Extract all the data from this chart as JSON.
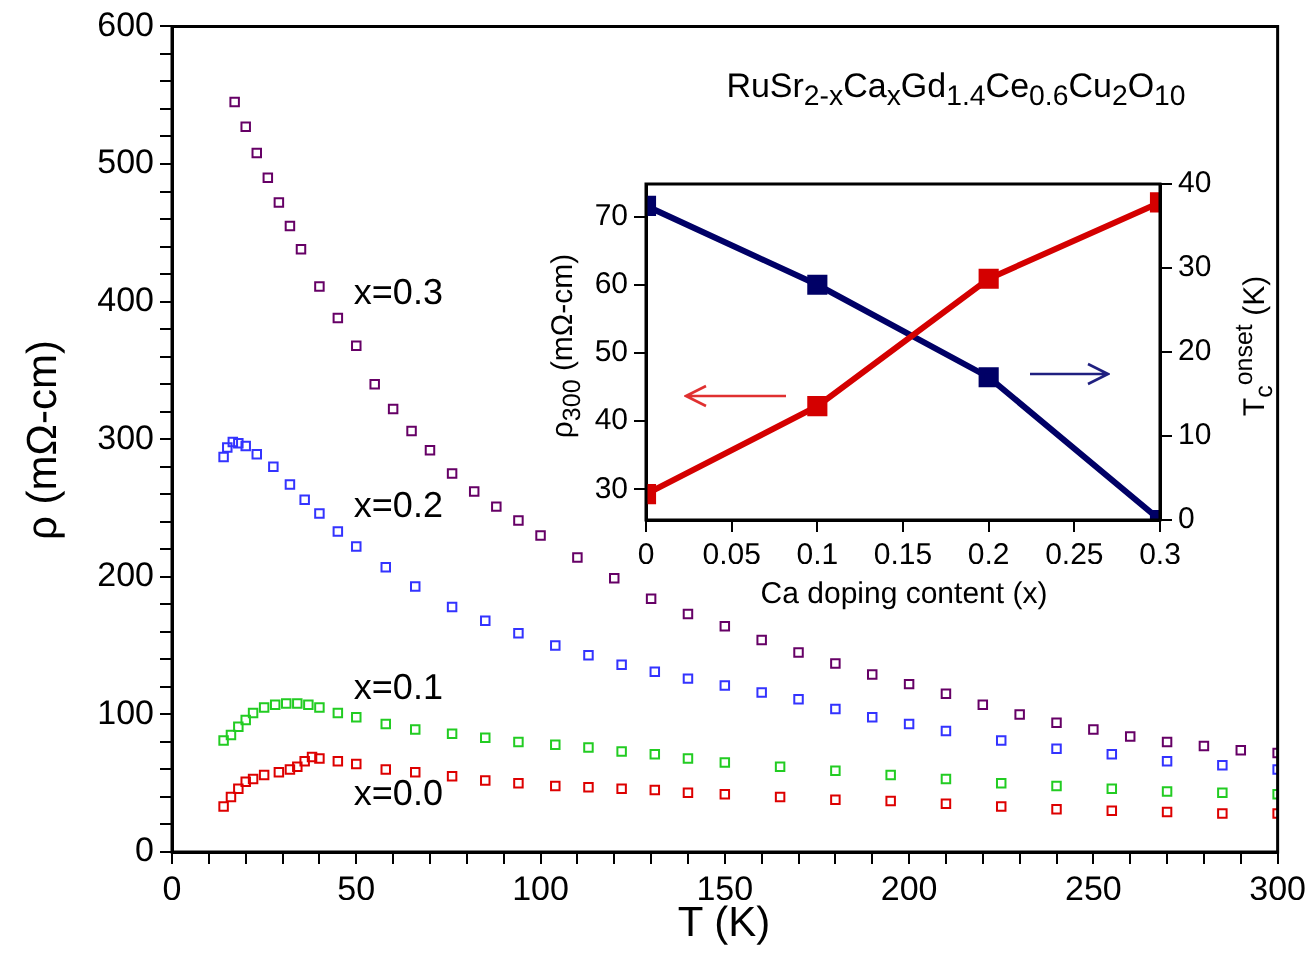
{
  "chart_data": [
    {
      "type": "scatter",
      "title": "RuSr$_{2-x}$Ca$_{x}$Gd$_{1.4}$Ce$_{0.6}$Cu$_{2}$O$_{10}$",
      "xlabel": "T (K)",
      "ylabel": "ρ (mΩ-cm)",
      "marker": "square",
      "legend": false,
      "grid": false,
      "xlim": [
        0,
        300
      ],
      "ylim": [
        0,
        600
      ],
      "xticks": [
        0,
        {
          "value": 10,
          "label": null
        },
        {
          "value": 20,
          "label": null
        },
        {
          "value": 30,
          "label": null
        },
        {
          "value": 40,
          "label": null
        },
        50,
        {
          "value": 60,
          "label": null
        },
        {
          "value": 70,
          "label": null
        },
        {
          "value": 80,
          "label": null
        },
        {
          "value": 90,
          "label": null
        },
        100,
        {
          "value": 110,
          "label": null
        },
        {
          "value": 120,
          "label": null
        },
        {
          "value": 130,
          "label": null
        },
        {
          "value": 140,
          "label": null
        },
        150,
        {
          "value": 160,
          "label": null
        },
        {
          "value": 170,
          "label": null
        },
        {
          "value": 180,
          "label": null
        },
        {
          "value": 190,
          "label": null
        },
        200,
        {
          "value": 210,
          "label": null
        },
        {
          "value": 220,
          "label": null
        },
        {
          "value": 230,
          "label": null
        },
        {
          "value": 240,
          "label": null
        },
        250,
        {
          "value": 260,
          "label": null
        },
        {
          "value": 270,
          "label": null
        },
        {
          "value": 280,
          "label": null
        },
        {
          "value": 290,
          "label": null
        },
        300
      ],
      "yticks": [
        0,
        {
          "value": 20,
          "label": null
        },
        {
          "value": 40,
          "label": null
        },
        {
          "value": 60,
          "label": null
        },
        {
          "value": 80,
          "label": null
        },
        100,
        {
          "value": 120,
          "label": null
        },
        {
          "value": 140,
          "label": null
        },
        {
          "value": 160,
          "label": null
        },
        {
          "value": 180,
          "label": null
        },
        200,
        {
          "value": 220,
          "label": null
        },
        {
          "value": 240,
          "label": null
        },
        {
          "value": 260,
          "label": null
        },
        {
          "value": 280,
          "label": null
        },
        300,
        {
          "value": 320,
          "label": null
        },
        {
          "value": 340,
          "label": null
        },
        {
          "value": 360,
          "label": null
        },
        {
          "value": 380,
          "label": null
        },
        400,
        {
          "value": 420,
          "label": null
        },
        {
          "value": 440,
          "label": null
        },
        {
          "value": 460,
          "label": null
        },
        {
          "value": 480,
          "label": null
        },
        500,
        {
          "value": 520,
          "label": null
        },
        {
          "value": 540,
          "label": null
        },
        {
          "value": 560,
          "label": null
        },
        {
          "value": 580,
          "label": null
        },
        600
      ],
      "series": [
        {
          "name": "x=0.3",
          "color": "#660066",
          "x": [
            17,
            20,
            23,
            26,
            29,
            32,
            35,
            40,
            45,
            50,
            55,
            60,
            65,
            70,
            76,
            82,
            88,
            94,
            100,
            110,
            120,
            130,
            140,
            150,
            160,
            170,
            180,
            190,
            200,
            210,
            220,
            230,
            240,
            250,
            260,
            270,
            280,
            290,
            300
          ],
          "values": [
            545,
            527,
            508,
            490,
            472,
            455,
            438,
            411,
            388,
            368,
            340,
            322,
            306,
            292,
            275,
            262,
            251,
            241,
            230,
            214,
            199,
            184,
            173,
            164,
            154,
            145,
            137,
            129,
            122,
            115,
            107,
            100,
            94,
            89,
            84,
            80,
            77,
            74,
            72
          ]
        },
        {
          "name": "x=0.2",
          "color": "#3333ff",
          "x": [
            14,
            15,
            16.5,
            18,
            20,
            23,
            27.5,
            32,
            36,
            40,
            45,
            50,
            58,
            66,
            76,
            85,
            94,
            104,
            113,
            122,
            131,
            140,
            150,
            160,
            170,
            180,
            190,
            200,
            210,
            225,
            240,
            255,
            270,
            285,
            300
          ],
          "values": [
            287,
            294,
            298,
            297,
            295,
            289,
            280,
            267,
            256,
            246,
            233,
            222,
            207,
            193,
            178,
            168,
            159,
            150,
            143,
            136,
            131,
            126,
            121,
            116,
            111,
            104,
            98,
            93,
            88,
            81,
            75,
            71,
            66,
            63,
            60
          ]
        },
        {
          "name": "x=0.1",
          "color": "#22cc22",
          "x": [
            14,
            16,
            18,
            20,
            22,
            25,
            28,
            31,
            34,
            37,
            40,
            45,
            50,
            58,
            66,
            76,
            85,
            94,
            104,
            113,
            122,
            131,
            140,
            150,
            165,
            180,
            195,
            210,
            225,
            240,
            255,
            270,
            285,
            300
          ],
          "values": [
            81,
            85,
            91,
            96,
            101,
            105,
            107,
            108,
            108,
            107,
            105,
            101,
            98,
            93,
            89,
            86,
            83,
            80,
            78,
            76,
            73,
            71,
            68,
            65,
            62,
            59,
            56,
            53,
            50,
            48,
            46,
            44,
            43,
            42
          ]
        },
        {
          "name": "x=0.0",
          "color": "#dd0000",
          "x": [
            14,
            16,
            18,
            20,
            22,
            25,
            29,
            32,
            34,
            36,
            38,
            40,
            45,
            50,
            58,
            66,
            76,
            85,
            94,
            104,
            113,
            122,
            131,
            140,
            150,
            165,
            180,
            195,
            210,
            225,
            240,
            255,
            270,
            285,
            300
          ],
          "values": [
            33,
            40,
            46,
            51,
            53,
            56,
            58,
            60,
            62,
            66,
            69,
            68,
            66,
            64,
            60,
            58,
            55,
            52,
            50,
            48,
            47,
            46,
            45,
            43,
            42,
            40,
            38,
            37,
            35,
            33,
            31,
            30,
            29,
            28,
            28
          ]
        }
      ]
    },
    {
      "type": "line",
      "xlabel": "Ca doping content (x)",
      "ylabel": "ρ$_{300}$ (mΩ-cm)",
      "y2label": "T$_{c}$$^{onset}$ (K)",
      "marker": "square",
      "legend": false,
      "grid": false,
      "xlim": [
        0,
        0.3
      ],
      "xticks": [
        0,
        0.05,
        0.1,
        0.15,
        0.2,
        0.25,
        0.3
      ],
      "ylim": [
        25.5,
        74.8
      ],
      "yticks": [
        30,
        40,
        50,
        60,
        70
      ],
      "y2lim": [
        0,
        40
      ],
      "y2ticks": [
        0,
        10,
        20,
        30,
        40
      ],
      "series": [
        {
          "color": "#d40000",
          "x": [
            0,
            0.1,
            0.2,
            0.3
          ],
          "values": [
            29.3,
            42.2,
            60.9,
            72.1
          ]
        },
        {
          "color": "#000066",
          "axis": "y2",
          "x": [
            0,
            0.1,
            0.2,
            0.3
          ],
          "values": [
            37.4,
            28,
            17,
            0
          ]
        }
      ]
    }
  ]
}
